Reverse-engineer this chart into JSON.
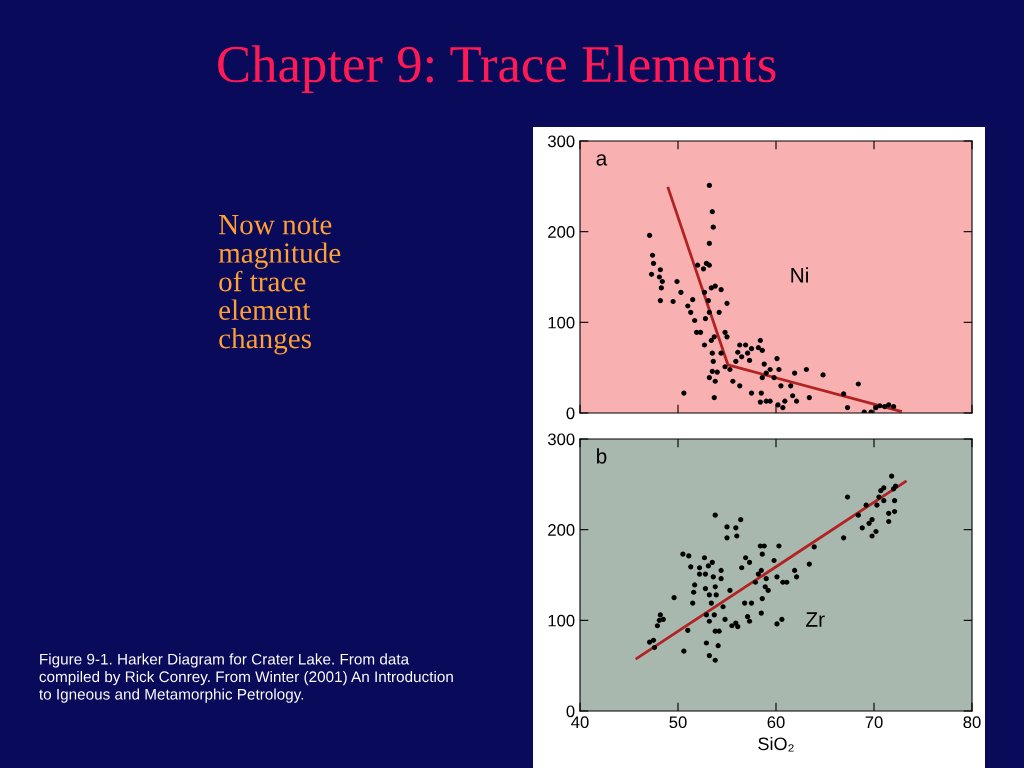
{
  "chart_data": [
    {
      "type": "scatter",
      "title": "Chapter 9: Trace Elements",
      "xlim": [
        40,
        80
      ],
      "xticks": [
        40,
        50,
        60,
        70,
        80
      ],
      "ylim": [
        0,
        300
      ],
      "yticks": [
        0,
        100,
        200,
        300
      ],
      "tick_labels": "y",
      "grid": false,
      "annotations": [
        "a",
        "Ni",
        "Now note\nmagnitude\nof trace\nelement\nchanges",
        "Figure 9-1. Harker Diagram for Crater Lake. From data\ncompiled by Rick Conrey. From Winter (2001) An Introduction\nto Igneous and Metamorphic Petrology."
      ],
      "series": [
        {
          "marker": "circle",
          "color": "#000000",
          "x": [
            47.1,
            47.4,
            47.5,
            47.3,
            48.2,
            48.1,
            48.4,
            48.3,
            48.2,
            49.9,
            49.5,
            50.3,
            51.0,
            51.5,
            51.3,
            51.7,
            51.9,
            52.3,
            52.0,
            52.6,
            52.9,
            53.2,
            53.2,
            53.2,
            53.5,
            53.6,
            52.7,
            53.1,
            53.2,
            53.4,
            53.8,
            54.4,
            54.2,
            55.0,
            52.8,
            52.7,
            53.4,
            53.7,
            53.5,
            53.6,
            53.5,
            53.2,
            54.0,
            53.8,
            53.7,
            50.6,
            54.8,
            55.0,
            54.4,
            54.8,
            55.3,
            55.6,
            56.1,
            55.9,
            56.3,
            56.5,
            56.9,
            57.1,
            57.3,
            57.5,
            58.2,
            58.4,
            58.6,
            56.3,
            57.5,
            58.8,
            59.0,
            59.4,
            59.8,
            60.1,
            60.3,
            58.6,
            58.5,
            58.4,
            59.0,
            59.4,
            60.2,
            60.7,
            60.9,
            60.5,
            61.5,
            61.7,
            62.1,
            61.9,
            63.4,
            63.1,
            64.8,
            66.9,
            67.3,
            68.4,
            69.0,
            69.7,
            70.2,
            70.6,
            71.1,
            71.5,
            72.0
          ],
          "values": [
            196,
            174,
            165,
            153,
            158,
            150,
            145,
            138,
            124,
            145,
            123,
            133,
            118,
            125,
            111,
            102,
            89,
            89,
            163,
            159,
            165,
            163,
            187,
            251,
            222,
            205,
            133,
            124,
            111,
            138,
            140,
            136,
            111,
            121,
            104,
            75,
            80,
            84,
            66,
            57,
            46,
            39,
            45,
            35,
            17,
            22,
            89,
            84,
            66,
            51,
            48,
            35,
            67,
            57,
            75,
            62,
            75,
            66,
            58,
            71,
            72,
            80,
            69,
            30,
            22,
            54,
            44,
            48,
            39,
            60,
            48,
            39,
            22,
            12,
            13,
            13,
            9,
            6,
            13,
            30,
            30,
            19,
            13,
            44,
            17,
            48,
            42,
            21,
            6,
            32,
            1,
            1,
            6,
            8,
            7,
            9,
            7
          ]
        },
        {
          "type": "line",
          "color": "#b22222",
          "x": [
            49.0,
            55.1,
            72.7
          ],
          "values": [
            248,
            53,
            2
          ]
        }
      ]
    },
    {
      "type": "scatter",
      "xlim": [
        40,
        80
      ],
      "xticks": [
        40,
        50,
        60,
        70,
        80
      ],
      "ylim": [
        0,
        300
      ],
      "yticks": [
        0,
        100,
        200,
        300
      ],
      "xlabel": "SiO₂",
      "grid": false,
      "annotations": [
        "b",
        "Zr"
      ],
      "series": [
        {
          "marker": "circle",
          "color": "#000000",
          "x": [
            47.1,
            47.5,
            47.6,
            48.1,
            48.2,
            47.9,
            48.5,
            49.6,
            50.6,
            51.0,
            50.5,
            51.1,
            51.3,
            51.7,
            51.6,
            51.5,
            52.2,
            52.2,
            52.7,
            52.8,
            52.8,
            53.1,
            53.2,
            53.4,
            52.9,
            53.5,
            53.6,
            53.8,
            53.9,
            53.2,
            53.7,
            53.8,
            54.2,
            52.9,
            53.2,
            53.8,
            54.1,
            53.8,
            54.4,
            54.4,
            54.6,
            54.8,
            55.3,
            55.5,
            55.9,
            56.1,
            55.0,
            55.0,
            55.9,
            56.0,
            56.4,
            56.5,
            56.9,
            57.3,
            56.8,
            57.1,
            57.3,
            57.5,
            57.9,
            58.2,
            58.4,
            58.8,
            58.6,
            58.5,
            58.6,
            58.5,
            58.9,
            59.2,
            59.0,
            59.8,
            60.1,
            60.3,
            60.1,
            60.6,
            60.7,
            61.1,
            61.9,
            62.1,
            63.9,
            63.4,
            67.3,
            66.9,
            68.4,
            68.8,
            69.2,
            69.5,
            69.8,
            69.8,
            70.2,
            70.3,
            70.5,
            70.7,
            71.0,
            71.0,
            71.5,
            71.5,
            71.8,
            72.0,
            72.1,
            72.1,
            72.2
          ],
          "values": [
            76,
            78,
            70,
            100,
            106,
            94,
            101,
            125,
            66,
            89,
            173,
            171,
            159,
            139,
            131,
            119,
            158,
            151,
            169,
            151,
            135,
            160,
            128,
            119,
            106,
            164,
            148,
            137,
            128,
            99,
            106,
            88,
            88,
            75,
            61,
            56,
            72,
            216,
            155,
            146,
            115,
            101,
            133,
            94,
            97,
            93,
            203,
            191,
            202,
            193,
            211,
            158,
            169,
            164,
            119,
            104,
            99,
            119,
            142,
            151,
            182,
            182,
            173,
            155,
            124,
            108,
            137,
            133,
            146,
            166,
            148,
            182,
            96,
            101,
            142,
            142,
            155,
            148,
            181,
            162,
            236,
            191,
            216,
            202,
            227,
            207,
            211,
            193,
            198,
            227,
            236,
            243,
            246,
            232,
            218,
            209,
            259,
            245,
            232,
            220,
            248
          ]
        },
        {
          "type": "line",
          "color": "#b22222",
          "x": [
            45.8,
            73.2
          ],
          "values": [
            58,
            253
          ]
        }
      ]
    }
  ]
}
